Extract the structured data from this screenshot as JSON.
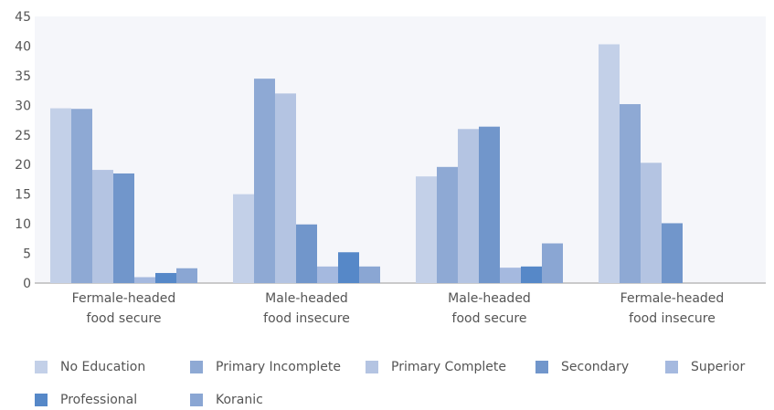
{
  "chart_data": {
    "type": "bar",
    "title": "",
    "xlabel": "",
    "ylabel": "",
    "ylim": [
      0,
      45
    ],
    "yticks": [
      0,
      5,
      10,
      15,
      20,
      25,
      30,
      35,
      40,
      45
    ],
    "grid": false,
    "legend_placement": "bottom",
    "categories": [
      [
        "Fermale-headed",
        "food secure"
      ],
      [
        "Male-headed",
        "food insecure"
      ],
      [
        "Male-headed",
        "food secure"
      ],
      [
        "Fermale-headed",
        "food insecure"
      ]
    ],
    "series": [
      {
        "name": "No Education",
        "color": "#c3d0e8",
        "values": [
          29.5,
          15,
          18,
          40.3
        ]
      },
      {
        "name": "Primary Incomplete",
        "color": "#8ea9d4",
        "values": [
          29.4,
          34.5,
          19.6,
          30.2
        ]
      },
      {
        "name": "Primary Complete",
        "color": "#b4c4e2",
        "values": [
          19.1,
          32,
          26,
          20.3
        ]
      },
      {
        "name": "Secondary",
        "color": "#7196cb",
        "values": [
          18.5,
          9.9,
          26.4,
          10.1
        ]
      },
      {
        "name": "Superior",
        "color": "#a5b9df",
        "values": [
          1,
          2.8,
          2.6,
          0
        ]
      },
      {
        "name": "Professional",
        "color": "#5688c8",
        "values": [
          1.7,
          5.2,
          2.8,
          0
        ]
      },
      {
        "name": "Koranic",
        "color": "#8aa6d3",
        "values": [
          2.5,
          2.8,
          6.7,
          0
        ]
      }
    ]
  }
}
